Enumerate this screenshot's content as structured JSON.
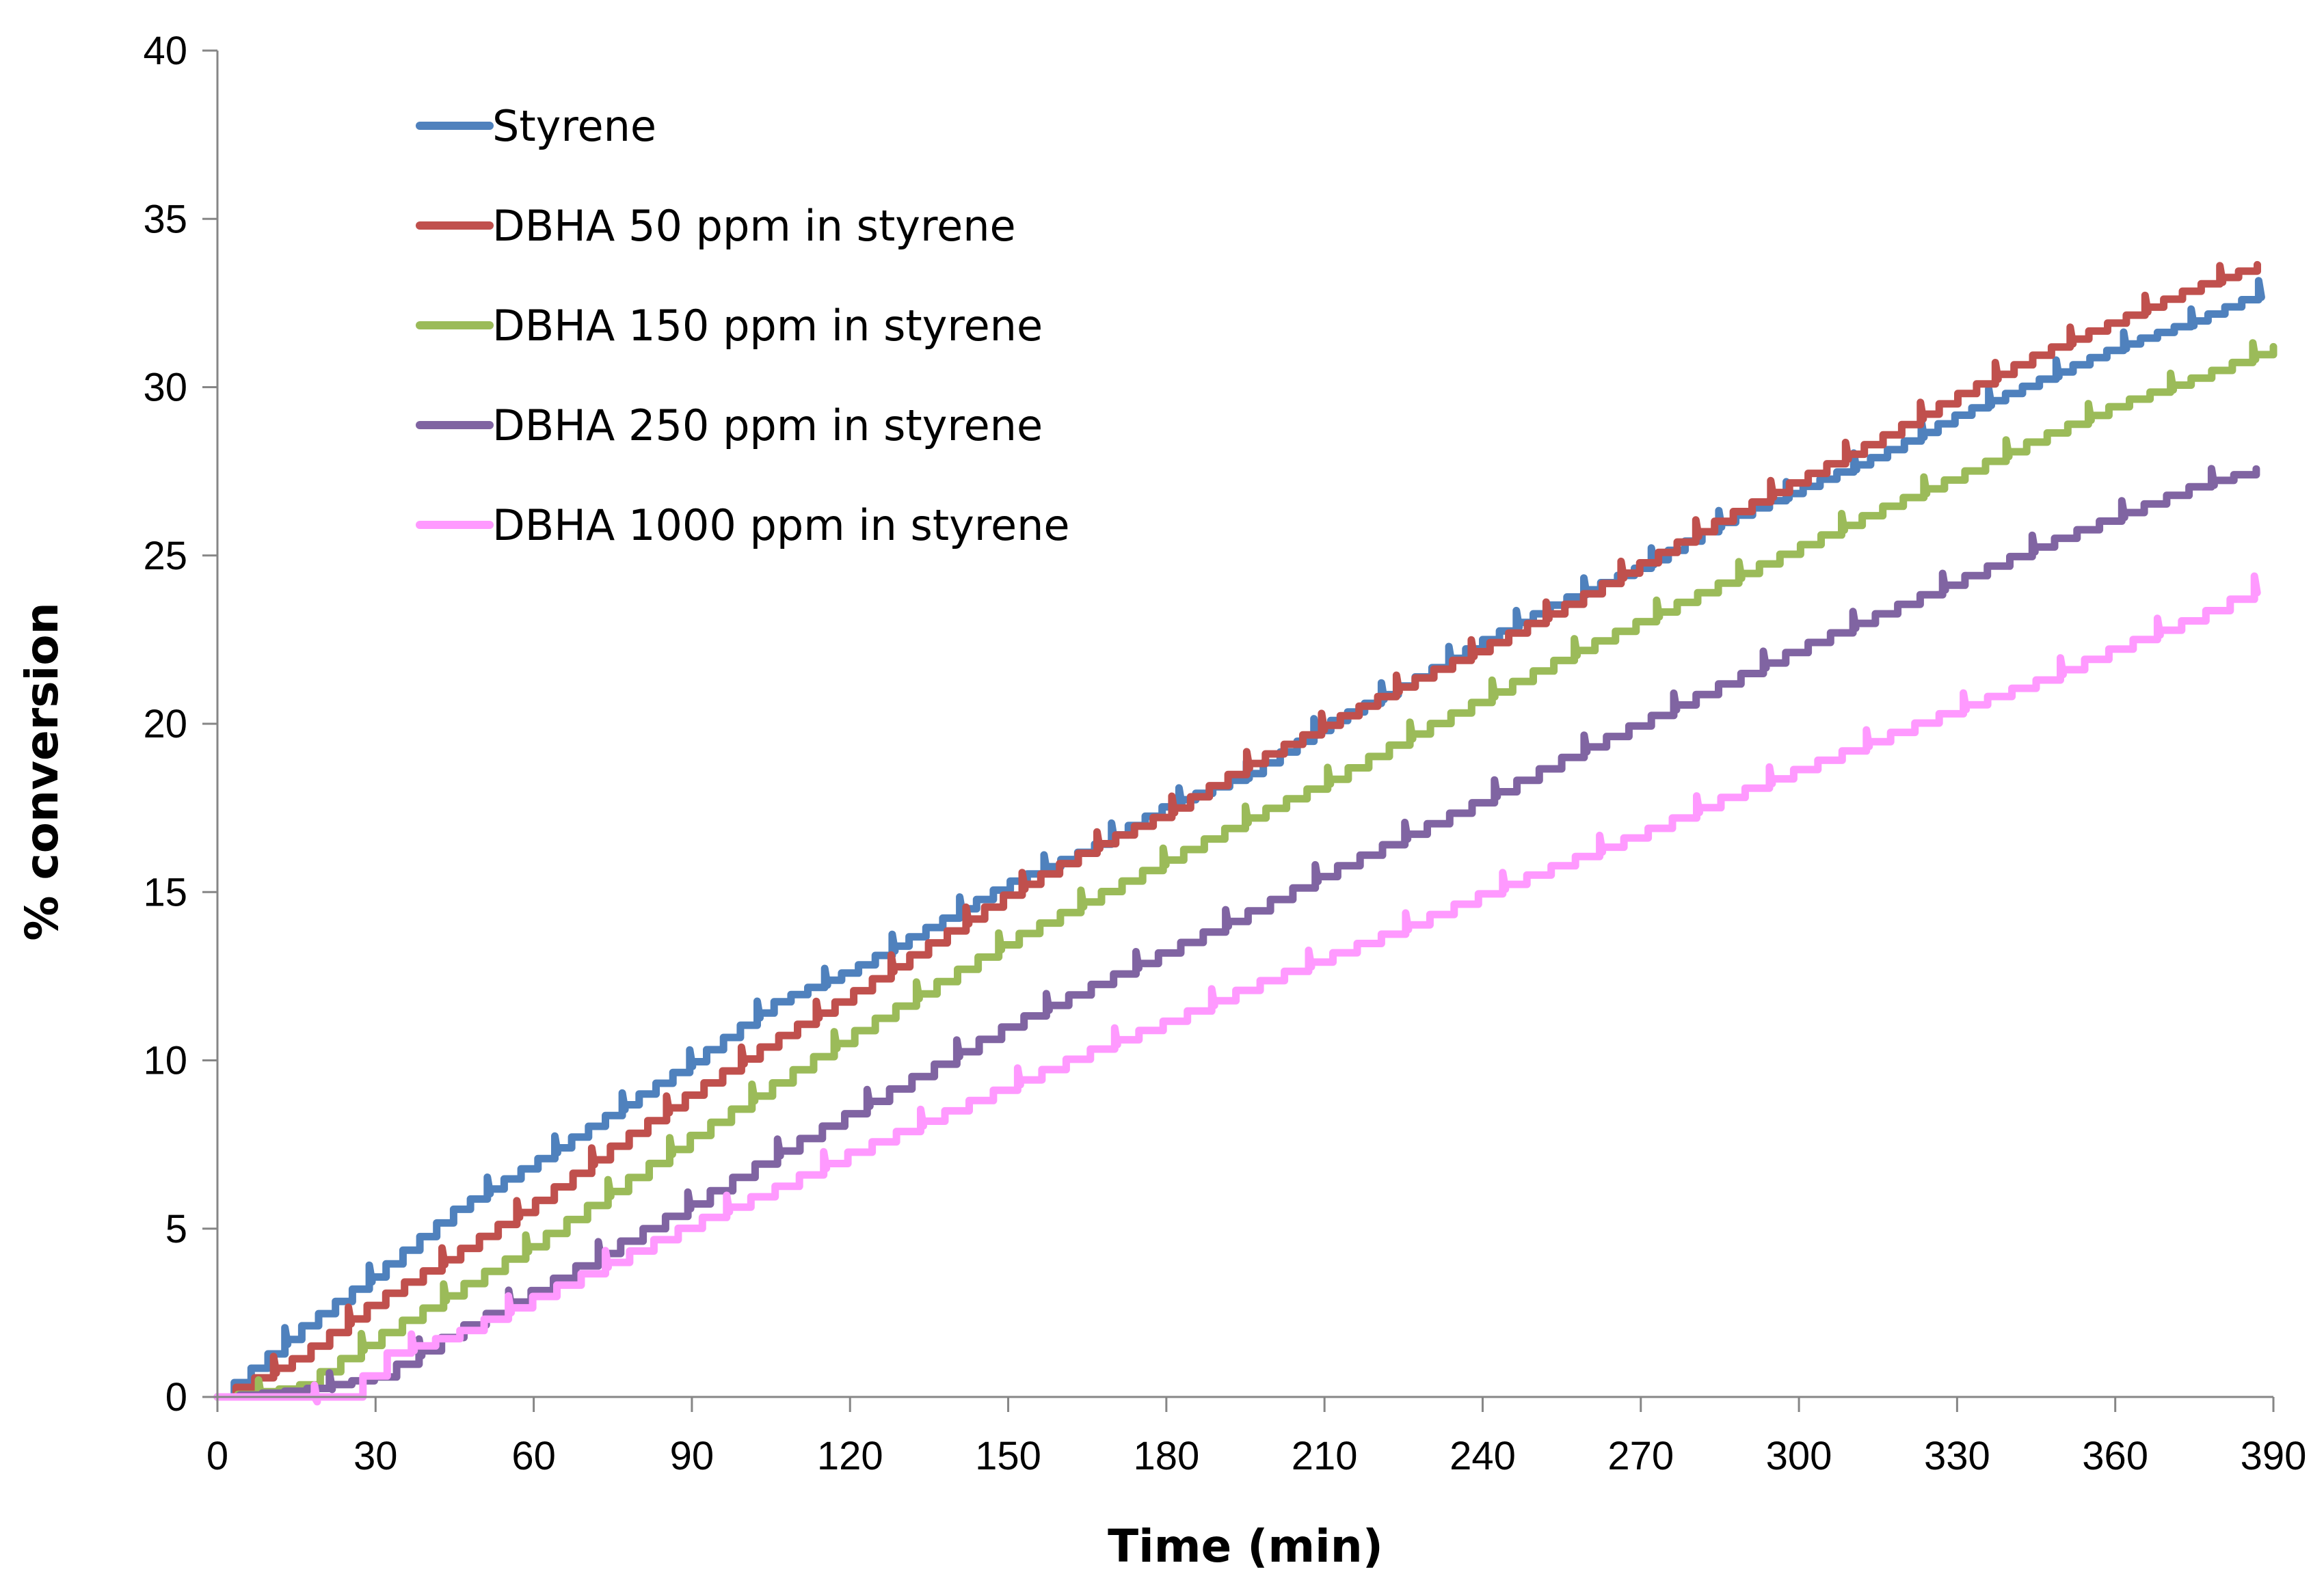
{
  "chart_data": {
    "type": "line",
    "title": "",
    "xlabel": "Time (min)",
    "ylabel": "% conversion",
    "xlim": [
      0,
      390
    ],
    "ylim": [
      0,
      40
    ],
    "x_ticks": [
      "0",
      "30",
      "60",
      "90",
      "120",
      "150",
      "180",
      "210",
      "240",
      "270",
      "300",
      "330",
      "360",
      "390"
    ],
    "y_ticks": [
      "0",
      "5",
      "10",
      "15",
      "20",
      "25",
      "30",
      "35",
      "40"
    ],
    "grid": false,
    "legend_position": "top-left",
    "series": [
      {
        "name": "Styrene",
        "color": "#4F81BD",
        "x": [
          0,
          15,
          30,
          45,
          60,
          75,
          90,
          105,
          120,
          135,
          150,
          165,
          180,
          195,
          210,
          225,
          240,
          255,
          270,
          285,
          300,
          315,
          330,
          345,
          360,
          375,
          390
        ],
        "y": [
          0,
          2.0,
          3.7,
          5.6,
          7.0,
          8.5,
          10.0,
          11.7,
          12.7,
          14.0,
          15.3,
          16.3,
          17.6,
          18.5,
          20.0,
          21.2,
          22.5,
          23.7,
          24.7,
          26.0,
          27.0,
          28.0,
          29.2,
          30.2,
          31.2,
          32.0,
          33.0
        ]
      },
      {
        "name": "DBHA 50 ppm in styrene",
        "color": "#C0504D",
        "x": [
          0,
          15,
          30,
          45,
          60,
          75,
          90,
          105,
          120,
          135,
          150,
          165,
          180,
          195,
          210,
          225,
          240,
          255,
          270,
          285,
          300,
          315,
          330,
          345,
          360,
          375,
          390
        ],
        "y": [
          0,
          1.2,
          2.9,
          4.3,
          5.8,
          7.5,
          9.1,
          10.6,
          12.0,
          13.5,
          15.0,
          16.3,
          17.4,
          18.8,
          20.0,
          21.2,
          22.3,
          23.5,
          24.8,
          26.1,
          27.3,
          28.5,
          29.8,
          31.0,
          32.0,
          33.0,
          33.8
        ]
      },
      {
        "name": "DBHA 150 ppm in styrene",
        "color": "#9BBB59",
        "x": [
          0,
          15,
          30,
          45,
          60,
          75,
          90,
          105,
          120,
          135,
          150,
          165,
          180,
          195,
          210,
          225,
          240,
          255,
          270,
          285,
          300,
          315,
          330,
          345,
          360,
          375,
          390
        ],
        "y": [
          0,
          0.3,
          1.8,
          3.2,
          4.6,
          6.2,
          7.8,
          9.3,
          10.8,
          12.2,
          13.6,
          14.8,
          16.0,
          17.2,
          18.3,
          19.6,
          20.8,
          22.0,
          23.1,
          24.2,
          25.3,
          26.4,
          27.4,
          28.5,
          29.5,
          30.3,
          31.2
        ]
      },
      {
        "name": "DBHA 250 ppm in styrene",
        "color": "#8064A2",
        "x": [
          0,
          15,
          30,
          45,
          60,
          75,
          90,
          105,
          120,
          135,
          150,
          165,
          180,
          195,
          210,
          225,
          240,
          255,
          270,
          285,
          300,
          315,
          330,
          345,
          360,
          375,
          390
        ],
        "y": [
          0,
          0.2,
          0.6,
          2.0,
          3.2,
          4.5,
          5.8,
          7.2,
          8.5,
          9.8,
          11.1,
          12.2,
          13.3,
          14.4,
          15.6,
          16.7,
          17.8,
          19.0,
          20.1,
          21.2,
          22.3,
          23.3,
          24.3,
          25.3,
          26.2,
          27.1,
          27.7
        ]
      },
      {
        "name": "DBHA 1000 ppm in styrene",
        "color": "#FF99FF",
        "x": [
          0,
          15,
          25,
          30,
          45,
          60,
          75,
          90,
          105,
          120,
          135,
          150,
          165,
          180,
          195,
          210,
          225,
          240,
          255,
          270,
          285,
          300,
          315,
          330,
          345,
          360,
          375,
          390
        ],
        "y": [
          0,
          0,
          0,
          1.2,
          1.9,
          3.0,
          4.1,
          5.2,
          6.2,
          7.3,
          8.3,
          9.3,
          10.3,
          11.2,
          12.2,
          13.1,
          14.0,
          15.0,
          15.9,
          16.8,
          17.8,
          18.7,
          19.6,
          20.5,
          21.3,
          22.3,
          23.2,
          24.3
        ]
      }
    ]
  }
}
